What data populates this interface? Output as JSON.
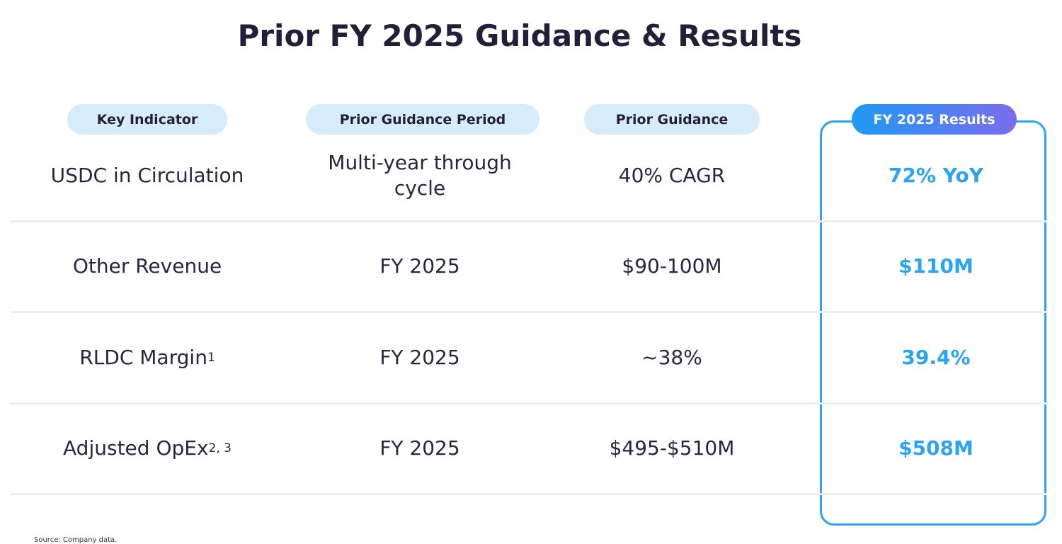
{
  "title": "Prior FY 2025 Guidance & Results",
  "table": {
    "headers": [
      "Key Indicator",
      "Prior Guidance Period",
      "Prior Guidance",
      "FY 2025 Results"
    ],
    "rows": [
      {
        "indicator": "USDC in Circulation",
        "period": "Multi-year through cycle",
        "guidance": "40% CAGR",
        "result": "72% YoY"
      },
      {
        "indicator": "Other Revenue",
        "period": "FY 2025",
        "guidance": "$90-100M",
        "result": "$110M"
      },
      {
        "indicator": "RLDC Margin",
        "footnote": "1",
        "period": "FY 2025",
        "guidance": "~38%",
        "result": "39.4%"
      },
      {
        "indicator": "Adjusted OpEx",
        "footnote": "2, 3",
        "period": "FY 2025",
        "guidance": "$495-$510M",
        "result": "$508M"
      }
    ]
  },
  "source": "Source: Company data."
}
